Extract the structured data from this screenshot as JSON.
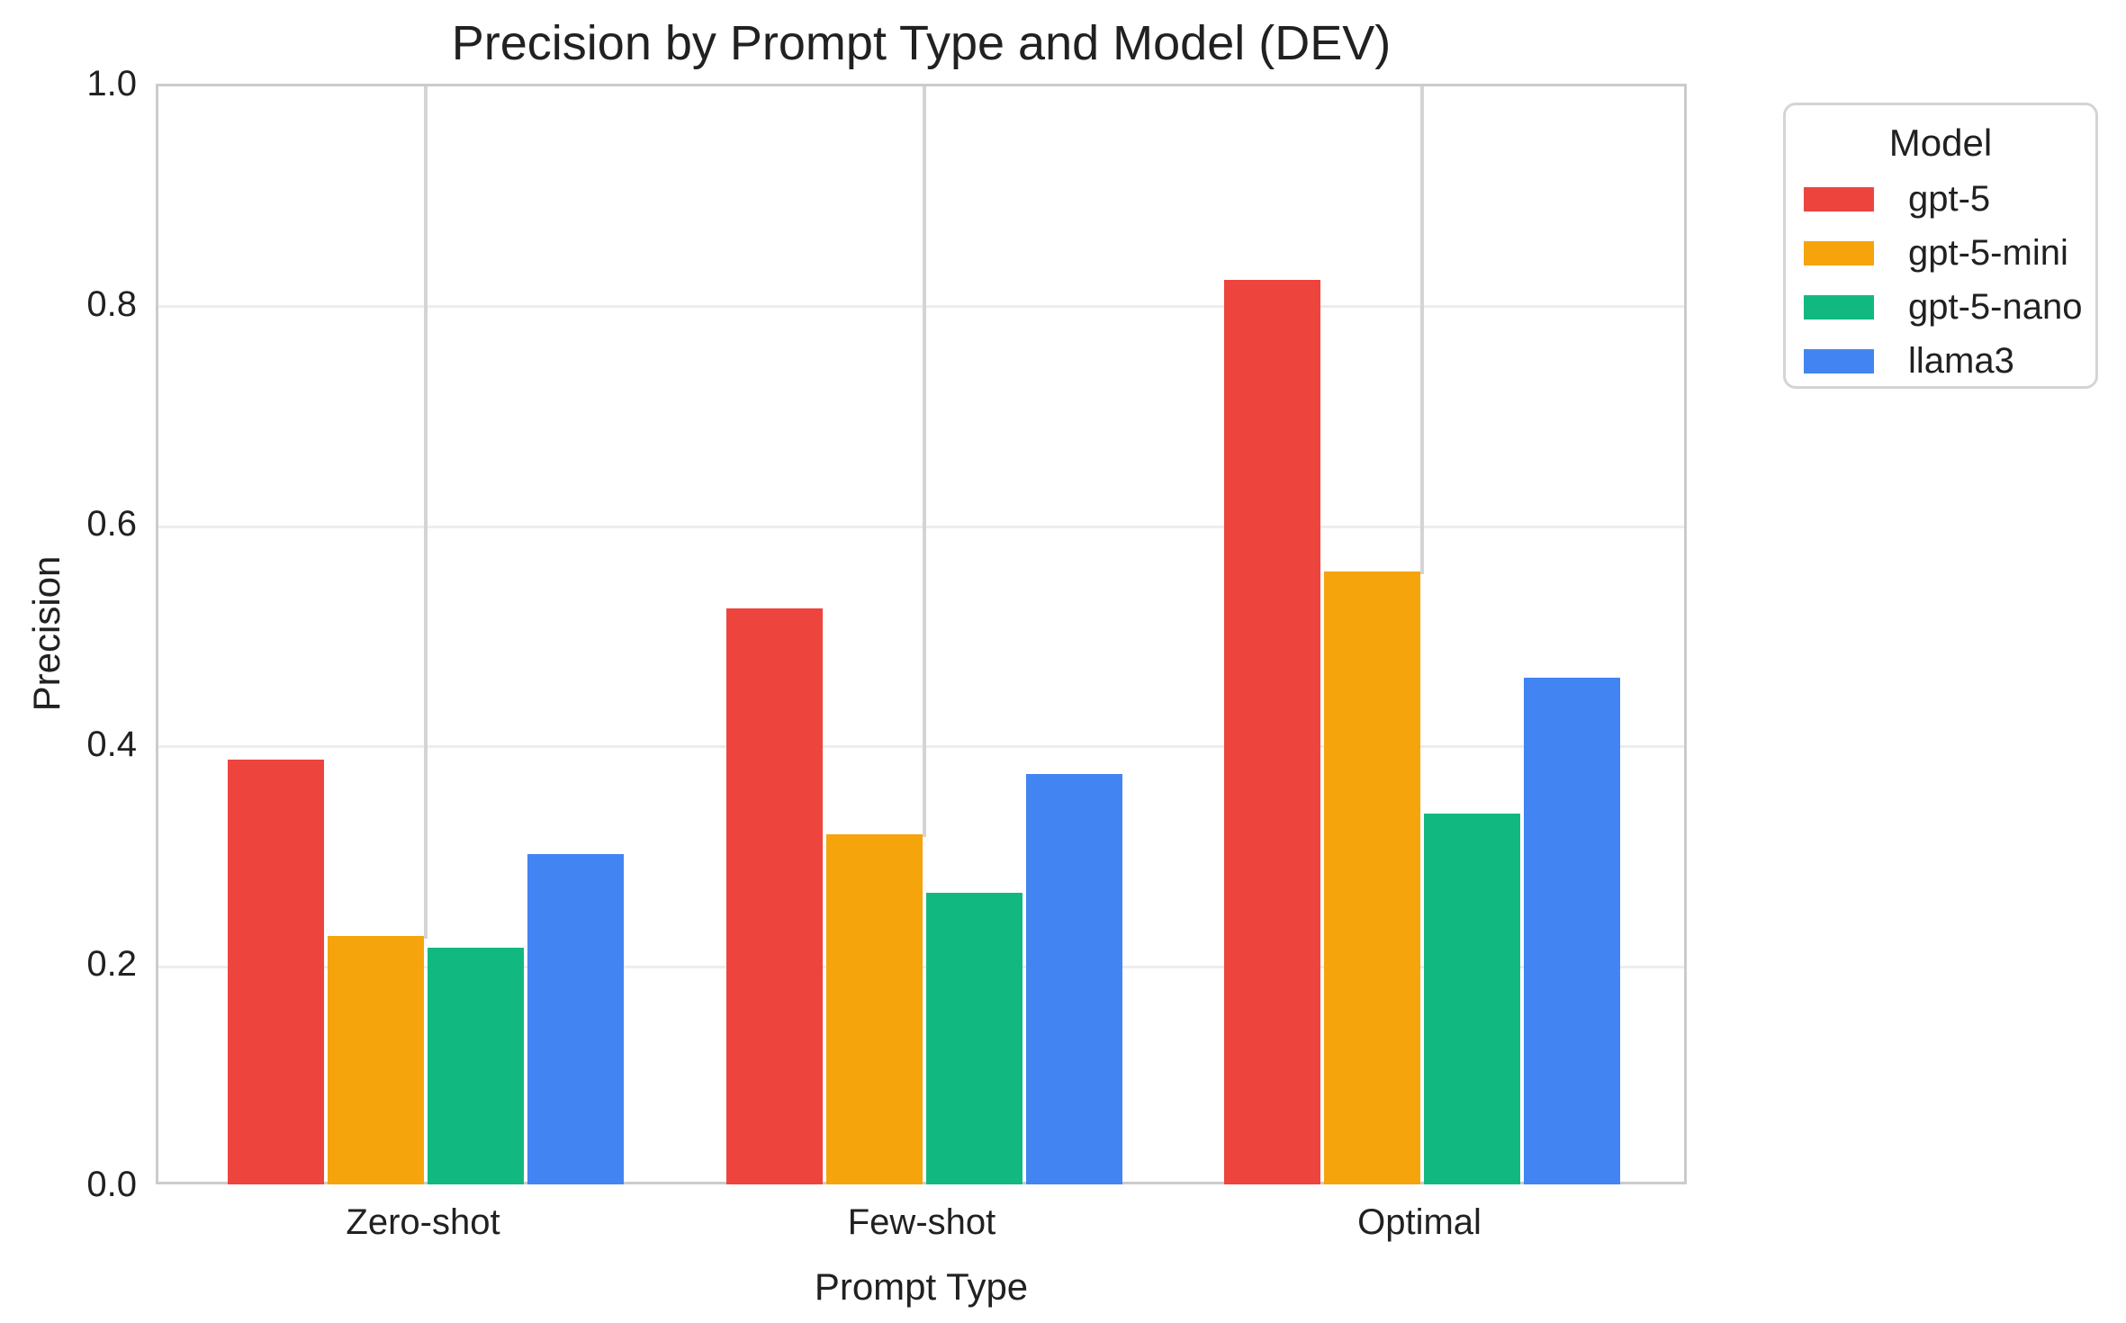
{
  "title": "Precision by Prompt Type and Model (DEV)",
  "legend": {
    "title": "Model",
    "entries": [
      {
        "label": "gpt-5",
        "color": "#EE443E"
      },
      {
        "label": "gpt-5-mini",
        "color": "#F5A40B"
      },
      {
        "label": "gpt-5-nano",
        "color": "#11B980"
      },
      {
        "label": "llama3",
        "color": "#4384F3"
      }
    ]
  },
  "colors": {
    "red": "#EE443E",
    "orange": "#F5A40B",
    "green": "#11B980",
    "blue": "#4384F3",
    "hgrid": "#ededed",
    "vgrid": "#d4d4d4",
    "spine": "#cbcbcb",
    "text": "#212121"
  },
  "chart_data": {
    "type": "bar",
    "title": "Precision by Prompt Type and Model (DEV)",
    "xlabel": "Prompt Type",
    "ylabel": "Precision",
    "categories": [
      "Zero-shot",
      "Few-shot",
      "Optimal"
    ],
    "series": [
      {
        "name": "gpt-5",
        "color": "#EE443E",
        "values": [
          0.386,
          0.523,
          0.822
        ]
      },
      {
        "name": "gpt-5-mini",
        "color": "#F5A40B",
        "values": [
          0.226,
          0.318,
          0.557
        ]
      },
      {
        "name": "gpt-5-nano",
        "color": "#11B980",
        "values": [
          0.215,
          0.265,
          0.337
        ]
      },
      {
        "name": "llama3",
        "color": "#4384F3",
        "values": [
          0.3,
          0.373,
          0.46
        ]
      }
    ],
    "ylim": [
      0.0,
      1.0
    ],
    "yticks": [
      "0.0",
      "0.2",
      "0.4",
      "0.6",
      "0.8",
      "1.0"
    ],
    "grid": true,
    "legend_title": "Model",
    "legend_position": "outside-right"
  }
}
